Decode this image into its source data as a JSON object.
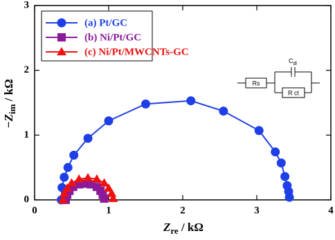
{
  "chart_data": {
    "type": "scatter",
    "x_label": {
      "symbol": "Z",
      "subscript": "re",
      "unit": " / kΩ"
    },
    "y_label": {
      "symbol": "−Z",
      "subscript": "im",
      "unit": " / kΩ"
    },
    "xlim": [
      0,
      4
    ],
    "xticks": [
      0,
      1,
      2,
      3,
      4
    ],
    "ylim": [
      0,
      3
    ],
    "yticks": [
      0,
      1,
      2,
      3
    ],
    "legend": "upper left",
    "series": [
      {
        "name": "(a) Pt/GC",
        "color": "#1f3fe6",
        "marker": "circle",
        "x": [
          0.36,
          0.37,
          0.4,
          0.45,
          0.53,
          0.72,
          1.0,
          1.5,
          2.11,
          2.55,
          3.03,
          3.25,
          3.33,
          3.38,
          3.41,
          3.43,
          3.44
        ],
        "values": [
          0,
          0.19,
          0.35,
          0.5,
          0.69,
          0.95,
          1.22,
          1.48,
          1.53,
          1.37,
          1.07,
          0.74,
          0.57,
          0.36,
          0.22,
          0.13,
          0.04
        ]
      },
      {
        "name": "(b) Ni/Pt/GC",
        "color": "#8b1a9a",
        "marker": "square",
        "x": [
          0.42,
          0.44,
          0.47,
          0.52,
          0.6,
          0.68,
          0.76,
          0.84,
          0.89,
          0.92,
          0.94
        ],
        "values": [
          0,
          0.08,
          0.14,
          0.2,
          0.24,
          0.25,
          0.24,
          0.2,
          0.14,
          0.08,
          0.02
        ]
      },
      {
        "name": "(c) Ni/Pt/MWCNTs-GC",
        "color": "#ee1111",
        "marker": "triangle",
        "x": [
          0.38,
          0.4,
          0.44,
          0.5,
          0.6,
          0.72,
          0.84,
          0.94,
          1.0,
          1.04,
          1.06
        ],
        "values": [
          0,
          0.1,
          0.18,
          0.26,
          0.32,
          0.34,
          0.32,
          0.26,
          0.18,
          0.1,
          0.02
        ]
      }
    ],
    "inset": {
      "rs": "Rs",
      "cdl": {
        "symbol": "C",
        "subscript": "dl"
      },
      "rct": "R ct"
    }
  }
}
